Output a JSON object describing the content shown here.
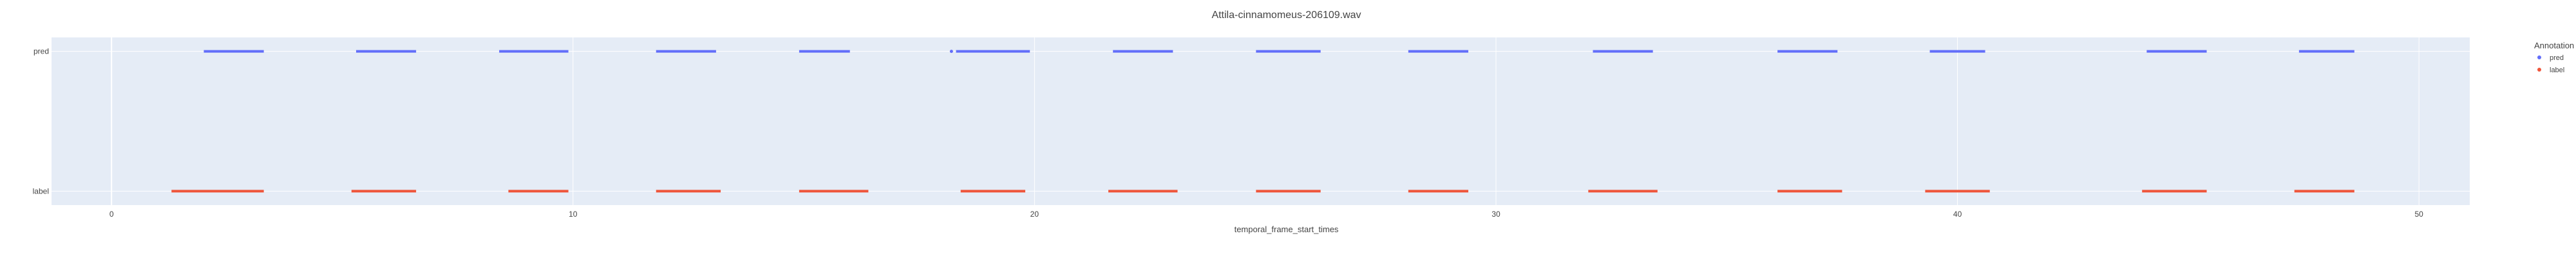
{
  "chart_data": {
    "type": "scatter",
    "title": "Attila-cinnamomeus-206109.wav",
    "xlabel": "temporal_frame_start_times",
    "ylabel": "",
    "xlim": [
      -1.3,
      51.1
    ],
    "x_ticks": [
      0,
      10,
      20,
      30,
      40,
      50
    ],
    "y_categories": [
      "label",
      "pred"
    ],
    "grid": true,
    "legend": {
      "title": "Annotation",
      "position": "top-right"
    },
    "series": [
      {
        "name": "pred",
        "color": "#636efa",
        "segments": [
          [
            2.0,
            3.3
          ],
          [
            5.3,
            6.6
          ],
          [
            8.4,
            9.9
          ],
          [
            11.8,
            13.1
          ],
          [
            14.9,
            16.0
          ],
          [
            18.3,
            19.9
          ],
          [
            21.7,
            23.0
          ],
          [
            24.8,
            26.2
          ],
          [
            28.1,
            29.4
          ],
          [
            32.1,
            33.4
          ],
          [
            36.1,
            37.4
          ],
          [
            39.4,
            40.6
          ],
          [
            44.1,
            45.4
          ],
          [
            47.4,
            48.6
          ]
        ],
        "points": [
          18.2
        ]
      },
      {
        "name": "label",
        "color": "#ef553b",
        "segments": [
          [
            1.3,
            3.3
          ],
          [
            5.2,
            6.6
          ],
          [
            8.6,
            9.9
          ],
          [
            11.8,
            13.2
          ],
          [
            14.9,
            16.4
          ],
          [
            18.4,
            19.8
          ],
          [
            21.6,
            23.1
          ],
          [
            24.8,
            26.2
          ],
          [
            28.1,
            29.4
          ],
          [
            32.0,
            33.5
          ],
          [
            36.1,
            37.5
          ],
          [
            39.3,
            40.7
          ],
          [
            44.0,
            45.4
          ],
          [
            47.3,
            48.6
          ]
        ],
        "points": []
      }
    ]
  }
}
